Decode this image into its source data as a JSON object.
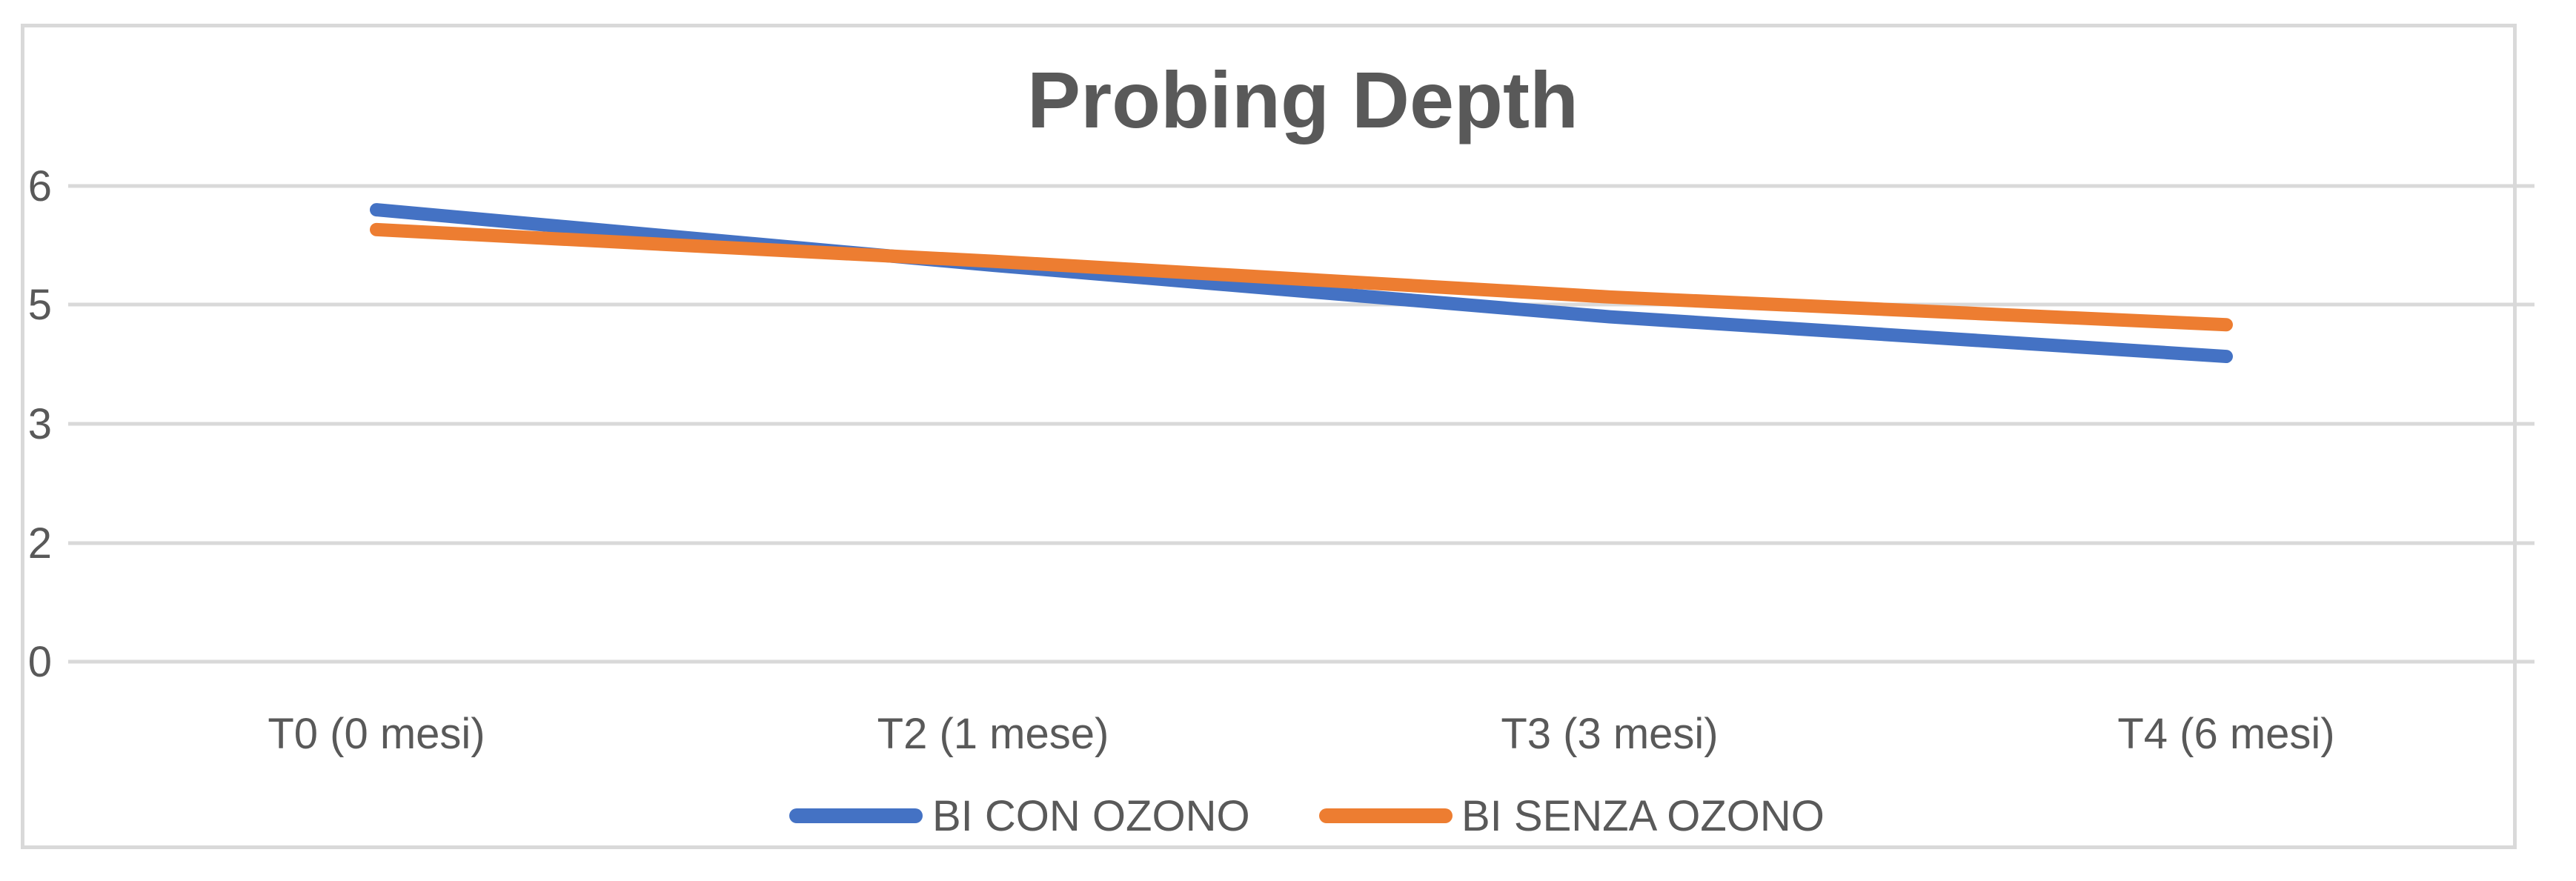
{
  "chart_data": {
    "type": "line",
    "title": "Probing Depth",
    "categories": [
      "T0 (0 mesi)",
      "T2 (1 mese)",
      "T3 (3 mesi)",
      "T4 (6 mesi)"
    ],
    "ytick_labels": [
      "0",
      "2",
      "3",
      "5",
      "6"
    ],
    "grid": true,
    "legend_position": "bottom",
    "series": [
      {
        "name": "BI CON OZONO",
        "color": "#4472C4",
        "values": [
          5.7,
          5.0,
          4.35,
          3.85
        ]
      },
      {
        "name": "BI SENZA OZONO",
        "color": "#ED7D31",
        "values": [
          5.45,
          5.05,
          4.6,
          4.25
        ]
      }
    ]
  }
}
